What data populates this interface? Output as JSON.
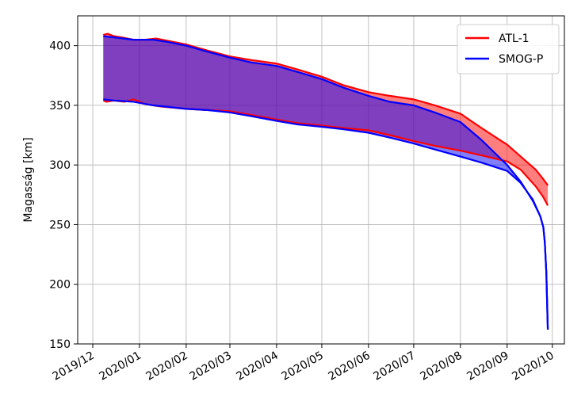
{
  "chart_data": {
    "type": "area",
    "ylabel": "Magasság [km]",
    "xlabel": "",
    "ylim": [
      150,
      425
    ],
    "xlim": [
      "2019-11-21",
      "2020-10-09"
    ],
    "yticks": [
      150,
      200,
      250,
      300,
      350,
      400
    ],
    "xticks": [
      {
        "date": "2019-12-01",
        "label": "2019/12"
      },
      {
        "date": "2020-01-01",
        "label": "2020/01"
      },
      {
        "date": "2020-02-01",
        "label": "2020/02"
      },
      {
        "date": "2020-03-01",
        "label": "2020/03"
      },
      {
        "date": "2020-04-01",
        "label": "2020/04"
      },
      {
        "date": "2020-05-01",
        "label": "2020/05"
      },
      {
        "date": "2020-06-01",
        "label": "2020/06"
      },
      {
        "date": "2020-07-01",
        "label": "2020/07"
      },
      {
        "date": "2020-08-01",
        "label": "2020/08"
      },
      {
        "date": "2020-09-01",
        "label": "2020/09"
      },
      {
        "date": "2020-10-01",
        "label": "2020/10"
      }
    ],
    "grid": true,
    "legend_position": "top-right",
    "series": [
      {
        "name": "ATL-1",
        "color": "#ff0000",
        "fill": "#ff0000",
        "fill_opacity": 0.5,
        "upper": [
          [
            "2019-12-08",
            409
          ],
          [
            "2019-12-11",
            410
          ],
          [
            "2019-12-15",
            408
          ],
          [
            "2019-12-20",
            407
          ],
          [
            "2019-12-28",
            405
          ],
          [
            "2020-01-05",
            405
          ],
          [
            "2020-01-12",
            406
          ],
          [
            "2020-01-20",
            404
          ],
          [
            "2020-02-01",
            401
          ],
          [
            "2020-02-15",
            396
          ],
          [
            "2020-03-01",
            391
          ],
          [
            "2020-03-15",
            388
          ],
          [
            "2020-04-01",
            385
          ],
          [
            "2020-04-15",
            380
          ],
          [
            "2020-05-01",
            374
          ],
          [
            "2020-05-15",
            367
          ],
          [
            "2020-06-01",
            361
          ],
          [
            "2020-06-15",
            358
          ],
          [
            "2020-07-01",
            355
          ],
          [
            "2020-07-15",
            350
          ],
          [
            "2020-08-01",
            343
          ],
          [
            "2020-08-15",
            331
          ],
          [
            "2020-09-01",
            317
          ],
          [
            "2020-09-10",
            307
          ],
          [
            "2020-09-20",
            296
          ],
          [
            "2020-09-25",
            288
          ],
          [
            "2020-09-28",
            283
          ]
        ],
        "lower": [
          [
            "2019-12-08",
            354
          ],
          [
            "2019-12-10",
            353
          ],
          [
            "2019-12-15",
            354
          ],
          [
            "2019-12-22",
            353
          ],
          [
            "2019-12-28",
            355
          ],
          [
            "2020-01-05",
            351
          ],
          [
            "2020-01-15",
            349
          ],
          [
            "2020-02-01",
            347
          ],
          [
            "2020-02-15",
            346
          ],
          [
            "2020-03-01",
            345
          ],
          [
            "2020-03-15",
            342
          ],
          [
            "2020-04-01",
            338
          ],
          [
            "2020-04-15",
            335
          ],
          [
            "2020-05-01",
            333
          ],
          [
            "2020-05-15",
            331
          ],
          [
            "2020-06-01",
            329
          ],
          [
            "2020-06-15",
            325
          ],
          [
            "2020-07-01",
            320
          ],
          [
            "2020-07-15",
            316
          ],
          [
            "2020-08-01",
            312
          ],
          [
            "2020-08-15",
            308
          ],
          [
            "2020-09-01",
            303
          ],
          [
            "2020-09-10",
            296
          ],
          [
            "2020-09-20",
            282
          ],
          [
            "2020-09-25",
            273
          ],
          [
            "2020-09-28",
            266
          ]
        ]
      },
      {
        "name": "SMOG-P",
        "color": "#0000ff",
        "fill": "#0000ff",
        "fill_opacity": 0.5,
        "upper": [
          [
            "2019-12-08",
            408
          ],
          [
            "2019-12-15",
            407
          ],
          [
            "2019-12-28",
            405
          ],
          [
            "2020-01-10",
            405
          ],
          [
            "2020-01-20",
            403
          ],
          [
            "2020-02-01",
            400
          ],
          [
            "2020-02-15",
            395
          ],
          [
            "2020-03-01",
            390
          ],
          [
            "2020-03-15",
            386
          ],
          [
            "2020-04-01",
            383
          ],
          [
            "2020-04-15",
            378
          ],
          [
            "2020-05-01",
            372
          ],
          [
            "2020-05-15",
            365
          ],
          [
            "2020-06-01",
            358
          ],
          [
            "2020-06-15",
            353
          ],
          [
            "2020-07-01",
            350
          ],
          [
            "2020-07-15",
            344
          ],
          [
            "2020-08-01",
            336
          ],
          [
            "2020-08-15",
            321
          ],
          [
            "2020-09-01",
            300
          ],
          [
            "2020-09-10",
            286
          ],
          [
            "2020-09-18",
            270
          ],
          [
            "2020-09-23",
            257
          ],
          [
            "2020-09-25",
            248
          ],
          [
            "2020-09-26",
            235
          ],
          [
            "2020-09-27",
            210
          ],
          [
            "2020-09-28",
            162
          ]
        ],
        "lower": [
          [
            "2019-12-08",
            355
          ],
          [
            "2019-12-15",
            354
          ],
          [
            "2019-12-28",
            353
          ],
          [
            "2020-01-10",
            350
          ],
          [
            "2020-02-01",
            347
          ],
          [
            "2020-02-15",
            346
          ],
          [
            "2020-03-01",
            344
          ],
          [
            "2020-03-15",
            341
          ],
          [
            "2020-04-01",
            337
          ],
          [
            "2020-04-15",
            334
          ],
          [
            "2020-05-01",
            332
          ],
          [
            "2020-05-15",
            330
          ],
          [
            "2020-06-01",
            327
          ],
          [
            "2020-06-15",
            323
          ],
          [
            "2020-07-01",
            318
          ],
          [
            "2020-07-15",
            313
          ],
          [
            "2020-08-01",
            307
          ],
          [
            "2020-08-15",
            302
          ],
          [
            "2020-09-01",
            295
          ],
          [
            "2020-09-10",
            285
          ],
          [
            "2020-09-18",
            271
          ],
          [
            "2020-09-23",
            257
          ],
          [
            "2020-09-25",
            248
          ],
          [
            "2020-09-26",
            235
          ],
          [
            "2020-09-27",
            210
          ],
          [
            "2020-09-28",
            162
          ]
        ]
      }
    ]
  }
}
